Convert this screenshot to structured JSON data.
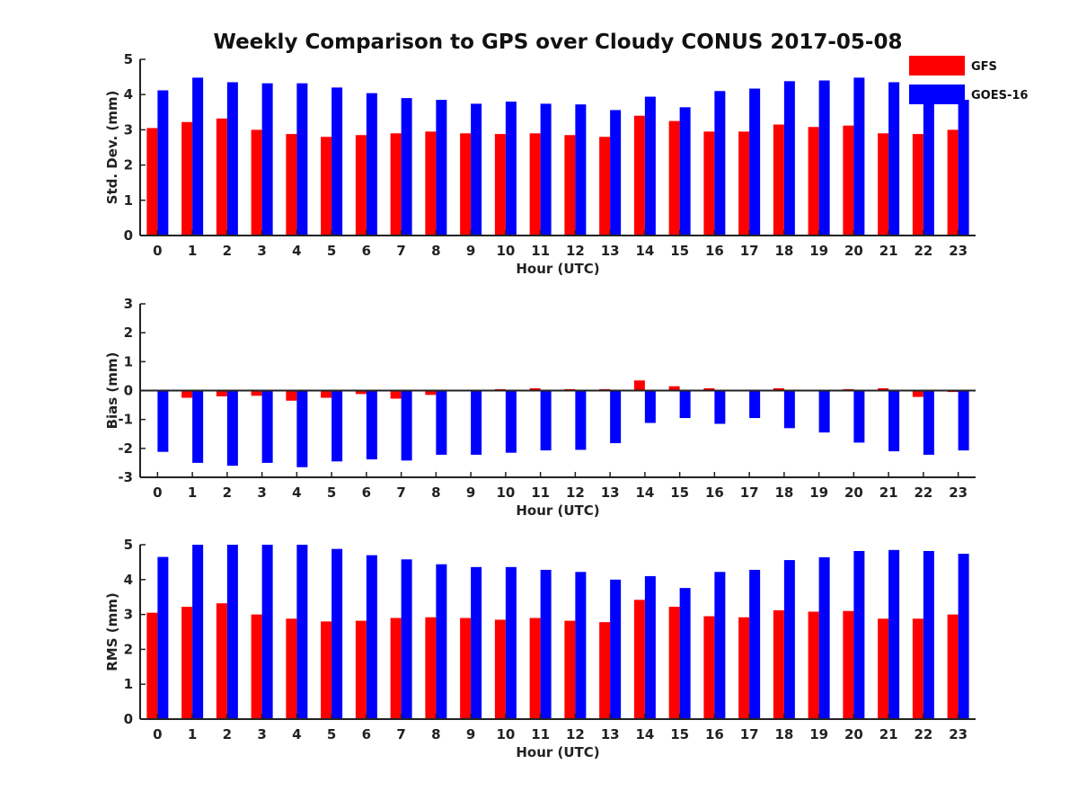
{
  "title": "Weekly Comparison to GPS over Cloudy CONUS 2017-05-08",
  "colors": {
    "GFS": "#ff0000",
    "GOES-16": "#0000ff",
    "axis": "#222222"
  },
  "legend": {
    "items": [
      "GFS",
      "GOES-16"
    ],
    "placement": "top-right"
  },
  "chart_data": [
    {
      "type": "bar",
      "ylabel": "Std. Dev. (mm)",
      "xlabel": "Hour (UTC)",
      "ylim": [
        0,
        5
      ],
      "yticks": [
        "0",
        "1",
        "2",
        "3",
        "4",
        "5"
      ],
      "categories": [
        "0",
        "1",
        "2",
        "3",
        "4",
        "5",
        "6",
        "7",
        "8",
        "9",
        "10",
        "11",
        "12",
        "13",
        "14",
        "15",
        "16",
        "17",
        "18",
        "19",
        "20",
        "21",
        "22",
        "23"
      ],
      "series": [
        {
          "name": "GFS",
          "values": [
            3.05,
            3.22,
            3.32,
            3.0,
            2.88,
            2.8,
            2.85,
            2.9,
            2.95,
            2.9,
            2.88,
            2.9,
            2.85,
            2.8,
            3.4,
            3.25,
            2.95,
            2.95,
            3.15,
            3.08,
            3.12,
            2.9,
            2.88,
            3.0
          ]
        },
        {
          "name": "GOES-16",
          "values": [
            4.12,
            4.48,
            4.35,
            4.32,
            4.32,
            4.2,
            4.04,
            3.9,
            3.85,
            3.74,
            3.8,
            3.74,
            3.72,
            3.56,
            3.94,
            3.64,
            4.1,
            4.17,
            4.38,
            4.4,
            4.48,
            4.35,
            3.78,
            3.85
          ]
        }
      ]
    },
    {
      "type": "bar",
      "ylabel": "Bias (mm)",
      "xlabel": "Hour (UTC)",
      "ylim": [
        -3,
        3
      ],
      "yticks": [
        "-3",
        "-2",
        "-1",
        "0",
        "1",
        "2",
        "3"
      ],
      "categories": [
        "0",
        "1",
        "2",
        "3",
        "4",
        "5",
        "6",
        "7",
        "8",
        "9",
        "10",
        "11",
        "12",
        "13",
        "14",
        "15",
        "16",
        "17",
        "18",
        "19",
        "20",
        "21",
        "22",
        "23"
      ],
      "series": [
        {
          "name": "GFS",
          "values": [
            0.0,
            -0.25,
            -0.2,
            -0.18,
            -0.35,
            -0.25,
            -0.12,
            -0.28,
            -0.15,
            0.02,
            0.05,
            0.08,
            0.05,
            0.05,
            0.35,
            0.15,
            0.08,
            0.02,
            0.08,
            0.02,
            0.05,
            0.08,
            -0.22,
            -0.05
          ]
        },
        {
          "name": "GOES-16",
          "values": [
            -2.12,
            -2.5,
            -2.6,
            -2.5,
            -2.65,
            -2.45,
            -2.38,
            -2.42,
            -2.22,
            -2.22,
            -2.15,
            -2.07,
            -2.05,
            -1.82,
            -1.12,
            -0.95,
            -1.15,
            -0.95,
            -1.3,
            -1.45,
            -1.8,
            -2.1,
            -2.22,
            -2.07
          ]
        }
      ]
    },
    {
      "type": "bar",
      "ylabel": "RMS (mm)",
      "xlabel": "Hour (UTC)",
      "ylim": [
        0,
        5
      ],
      "yticks": [
        "0",
        "1",
        "2",
        "3",
        "4",
        "5"
      ],
      "categories": [
        "0",
        "1",
        "2",
        "3",
        "4",
        "5",
        "6",
        "7",
        "8",
        "9",
        "10",
        "11",
        "12",
        "13",
        "14",
        "15",
        "16",
        "17",
        "18",
        "19",
        "20",
        "21",
        "22",
        "23"
      ],
      "series": [
        {
          "name": "GFS",
          "values": [
            3.05,
            3.22,
            3.32,
            3.0,
            2.88,
            2.8,
            2.82,
            2.9,
            2.92,
            2.9,
            2.85,
            2.9,
            2.82,
            2.78,
            3.42,
            3.22,
            2.95,
            2.92,
            3.12,
            3.08,
            3.1,
            2.88,
            2.88,
            3.0
          ]
        },
        {
          "name": "GOES-16",
          "values": [
            4.65,
            5.0,
            5.0,
            5.0,
            5.0,
            4.88,
            4.7,
            4.58,
            4.44,
            4.36,
            4.36,
            4.28,
            4.22,
            4.0,
            4.1,
            3.76,
            4.22,
            4.28,
            4.56,
            4.64,
            4.82,
            4.85,
            4.82,
            4.74
          ]
        }
      ]
    }
  ]
}
